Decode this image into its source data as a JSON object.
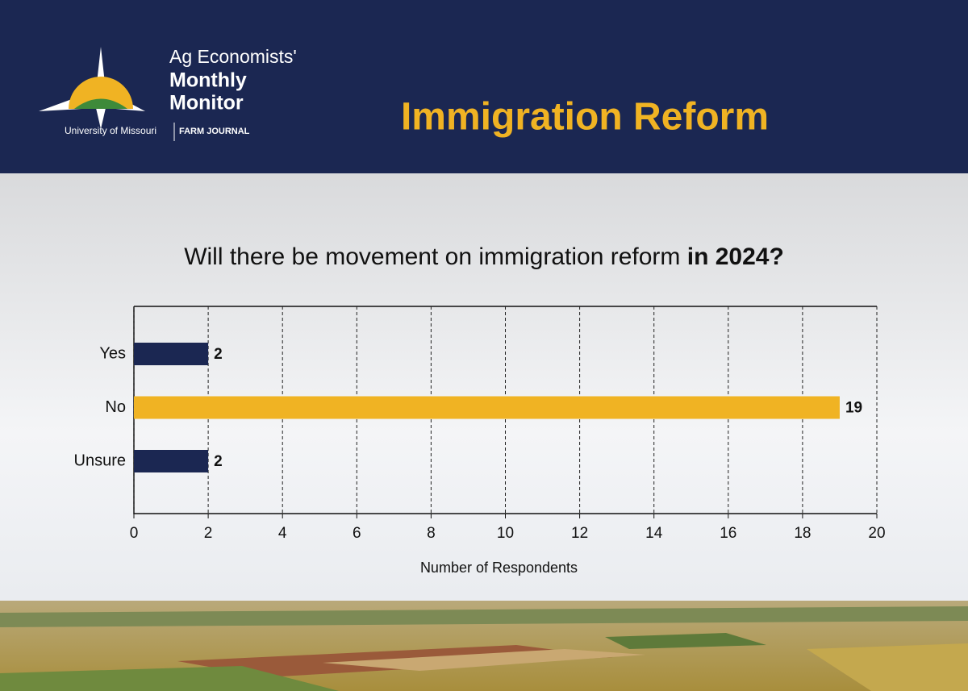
{
  "header": {
    "logo": {
      "line1": "Ag Economists'",
      "line2": "Monthly",
      "line3": "Monitor",
      "university": "University of Missouri",
      "partner": "FARM JOURNAL"
    },
    "title": "Immigration Reform"
  },
  "chart_data": {
    "type": "bar",
    "orientation": "horizontal",
    "title": "Will there be movement on immigration reform",
    "title_emphasis": "in 2024?",
    "categories": [
      "Yes",
      "No",
      "Unsure"
    ],
    "values": [
      2,
      19,
      2
    ],
    "colors": [
      "#1b2752",
      "#f0b323",
      "#1b2752"
    ],
    "xlabel": "Number of Respondents",
    "xlim": [
      0,
      20
    ],
    "xticks": [
      0,
      2,
      4,
      6,
      8,
      10,
      12,
      14,
      16,
      18,
      20
    ],
    "grid": true
  }
}
